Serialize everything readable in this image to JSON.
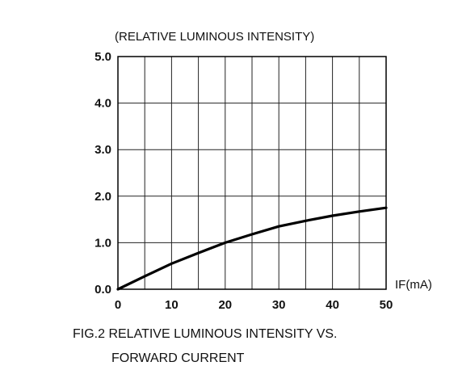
{
  "chart_data": {
    "type": "line",
    "title": "",
    "ylabel": "(RELATIVE LUMINOUS INTENSITY)",
    "xlabel": "IF(mA)",
    "caption": {
      "line1": "FIG.2 RELATIVE LUMINOUS INTENSITY VS.",
      "line2": "FORWARD CURRENT"
    },
    "xlim": [
      0,
      50
    ],
    "ylim": [
      0,
      5
    ],
    "x_ticks": [
      "0",
      "10",
      "20",
      "30",
      "40",
      "50"
    ],
    "y_ticks": [
      "0.0",
      "1.0",
      "2.0",
      "3.0",
      "4.0",
      "5.0"
    ],
    "grid": true,
    "series": [
      {
        "x": [
          0,
          5,
          10,
          15,
          20,
          25,
          30,
          35,
          40,
          45,
          50
        ],
        "y": [
          0,
          0.28,
          0.55,
          0.78,
          1.0,
          1.18,
          1.35,
          1.47,
          1.58,
          1.67,
          1.75
        ],
        "color": "#000000"
      }
    ]
  }
}
